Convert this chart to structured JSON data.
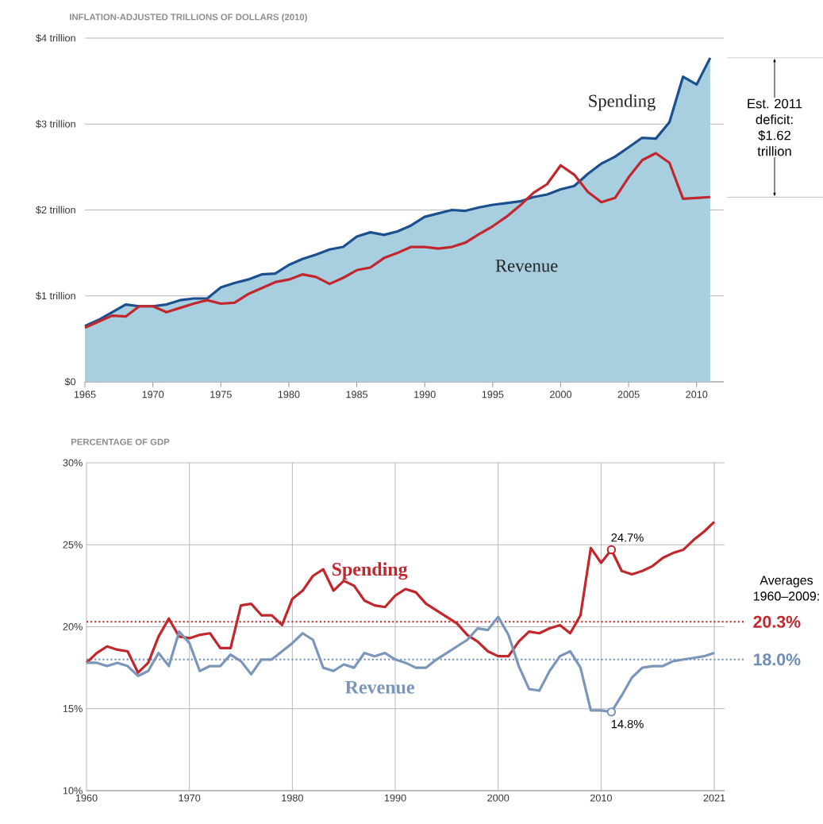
{
  "chart_data": [
    {
      "type": "line",
      "title": "INFLATION-ADJUSTED TRILLIONS OF DOLLARS (2010)",
      "x": [
        1965,
        1966,
        1967,
        1968,
        1969,
        1970,
        1971,
        1972,
        1973,
        1974,
        1975,
        1976,
        1977,
        1978,
        1979,
        1980,
        1981,
        1982,
        1983,
        1984,
        1985,
        1986,
        1987,
        1988,
        1989,
        1990,
        1991,
        1992,
        1993,
        1994,
        1995,
        1996,
        1997,
        1998,
        1999,
        2000,
        2001,
        2002,
        2003,
        2004,
        2005,
        2006,
        2007,
        2008,
        2009,
        2010,
        2011
      ],
      "series": [
        {
          "name": "Spending",
          "type": "area",
          "color": "#1c4f8e",
          "values": [
            0.65,
            0.72,
            0.81,
            0.9,
            0.88,
            0.88,
            0.9,
            0.95,
            0.97,
            0.97,
            1.1,
            1.15,
            1.19,
            1.25,
            1.26,
            1.36,
            1.43,
            1.48,
            1.54,
            1.57,
            1.69,
            1.74,
            1.71,
            1.75,
            1.82,
            1.92,
            1.96,
            2.0,
            1.99,
            2.03,
            2.06,
            2.08,
            2.1,
            2.15,
            2.18,
            2.24,
            2.28,
            2.42,
            2.54,
            2.62,
            2.73,
            2.84,
            2.83,
            3.02,
            3.55,
            3.46,
            3.77
          ]
        },
        {
          "name": "Revenue",
          "type": "line",
          "color": "#c1272d",
          "values": [
            0.63,
            0.7,
            0.77,
            0.76,
            0.88,
            0.88,
            0.81,
            0.86,
            0.91,
            0.95,
            0.91,
            0.92,
            1.02,
            1.09,
            1.16,
            1.19,
            1.25,
            1.22,
            1.14,
            1.21,
            1.3,
            1.33,
            1.44,
            1.5,
            1.57,
            1.57,
            1.55,
            1.57,
            1.62,
            1.72,
            1.81,
            1.92,
            2.05,
            2.2,
            2.3,
            2.52,
            2.41,
            2.21,
            2.09,
            2.14,
            2.38,
            2.58,
            2.66,
            2.55,
            2.13,
            2.14,
            2.15
          ]
        }
      ],
      "xlim": [
        1965,
        2012
      ],
      "xticks": [
        1965,
        1970,
        1975,
        1980,
        1985,
        1990,
        1995,
        2000,
        2005,
        2010
      ],
      "ylim": [
        0,
        4
      ],
      "yticks": [
        {
          "value": 0,
          "label": "$0"
        },
        {
          "value": 1,
          "label": "$1 trillion"
        },
        {
          "value": 2,
          "label": "$2 trillion"
        },
        {
          "value": 3,
          "label": "$3 trillion"
        },
        {
          "value": 4,
          "label": "$4 trillion"
        }
      ],
      "grid": "y",
      "annotations": [
        "Est. 2011 deficit: $1.62 trillion"
      ]
    },
    {
      "type": "line",
      "title": "PERCENTAGE OF GDP",
      "x": [
        1960,
        1961,
        1962,
        1963,
        1964,
        1965,
        1966,
        1967,
        1968,
        1969,
        1970,
        1971,
        1972,
        1973,
        1974,
        1975,
        1976,
        1977,
        1978,
        1979,
        1980,
        1981,
        1982,
        1983,
        1984,
        1985,
        1986,
        1987,
        1988,
        1989,
        1990,
        1991,
        1992,
        1993,
        1994,
        1995,
        1996,
        1997,
        1998,
        1999,
        2000,
        2001,
        2002,
        2003,
        2004,
        2005,
        2006,
        2007,
        2008,
        2009,
        2010,
        2011,
        2012,
        2013,
        2014,
        2015,
        2016,
        2017,
        2018,
        2019,
        2020,
        2021
      ],
      "series": [
        {
          "name": "Spending",
          "color": "#c1272d",
          "values": [
            17.8,
            18.4,
            18.8,
            18.6,
            18.5,
            17.2,
            17.8,
            19.4,
            20.5,
            19.4,
            19.3,
            19.5,
            19.6,
            18.7,
            18.7,
            21.3,
            21.4,
            20.7,
            20.7,
            20.1,
            21.7,
            22.2,
            23.1,
            23.5,
            22.2,
            22.8,
            22.5,
            21.6,
            21.3,
            21.2,
            21.9,
            22.3,
            22.1,
            21.4,
            21.0,
            20.6,
            20.2,
            19.5,
            19.1,
            18.5,
            18.2,
            18.2,
            19.1,
            19.7,
            19.6,
            19.9,
            20.1,
            19.6,
            20.7,
            24.8,
            23.9,
            24.7,
            23.4,
            23.2,
            23.4,
            23.7,
            24.2,
            24.5,
            24.7,
            25.3,
            25.8,
            26.4
          ]
        },
        {
          "name": "Revenue",
          "color": "#7b96bb",
          "values": [
            17.8,
            17.8,
            17.6,
            17.8,
            17.6,
            17.0,
            17.3,
            18.4,
            17.6,
            19.7,
            19.0,
            17.3,
            17.6,
            17.6,
            18.3,
            17.9,
            17.1,
            18.0,
            18.0,
            18.5,
            19.0,
            19.6,
            19.2,
            17.5,
            17.3,
            17.7,
            17.5,
            18.4,
            18.2,
            18.4,
            18.0,
            17.8,
            17.5,
            17.5,
            18.0,
            18.4,
            18.8,
            19.2,
            19.9,
            19.8,
            20.6,
            19.5,
            17.6,
            16.2,
            16.1,
            17.3,
            18.2,
            18.5,
            17.5,
            14.9,
            14.9,
            14.8,
            15.8,
            16.9,
            17.5,
            17.6,
            17.6,
            17.9,
            18.0,
            18.1,
            18.2,
            18.4
          ]
        }
      ],
      "xlim": [
        1960,
        2022
      ],
      "xticks": [
        1960,
        1970,
        1980,
        1990,
        2000,
        2010,
        2021
      ],
      "ylim": [
        10,
        30
      ],
      "yticks": [
        {
          "value": 10,
          "label": "10%"
        },
        {
          "value": 15,
          "label": "15%"
        },
        {
          "value": 20,
          "label": "20%"
        },
        {
          "value": 25,
          "label": "25%"
        },
        {
          "value": 30,
          "label": "30%"
        }
      ],
      "grid": true,
      "ref_lines": [
        {
          "axis": "y",
          "value": 20.3,
          "label": "20.3%",
          "color": "#c1272d",
          "line_style": "dotted"
        },
        {
          "axis": "y",
          "value": 18.0,
          "label": "18.0%",
          "color": "#6f8db5",
          "line_style": "dotted"
        }
      ],
      "annotations": [
        "Averages 1960–2009:",
        {
          "text": "24.7%",
          "x": 2011,
          "y": 24.7
        },
        {
          "text": "14.8%",
          "x": 2011,
          "y": 14.8
        }
      ]
    }
  ]
}
